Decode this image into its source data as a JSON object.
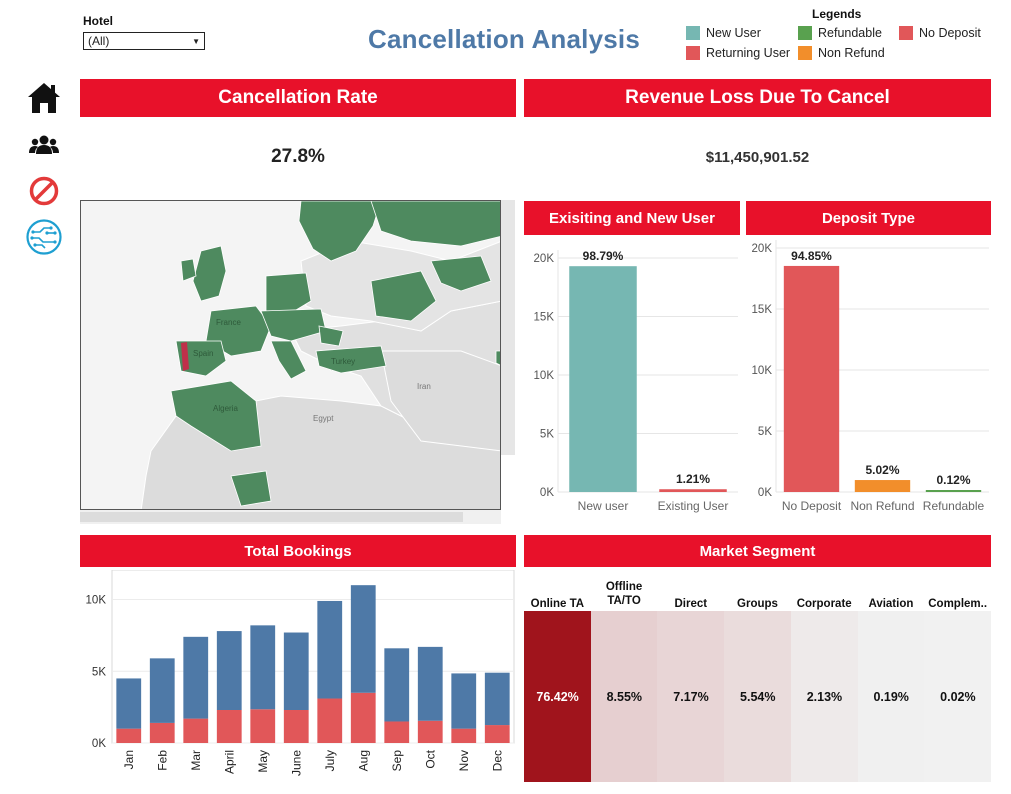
{
  "filter": {
    "label": "Hotel",
    "value": "(All)"
  },
  "title": "Cancellation Analysis",
  "legends": {
    "title": "Legends",
    "items": [
      {
        "label": "New User",
        "color": "#76b7b2"
      },
      {
        "label": "Returning User",
        "color": "#e15759"
      },
      {
        "label": "Refundable",
        "color": "#59a14f"
      },
      {
        "label": "Non Refund",
        "color": "#f28e2b"
      },
      {
        "label": "No Deposit",
        "color": "#e15759"
      }
    ]
  },
  "nav": [
    "home-icon",
    "users-icon",
    "no-entry-icon",
    "circuit-icon"
  ],
  "kpis": {
    "cancellation_rate": {
      "title": "Cancellation Rate",
      "value": "27.8%"
    },
    "revenue_loss": {
      "title": "Revenue Loss Due To Cancel",
      "value": "$11,450,901.52"
    }
  },
  "map": {
    "labels": [
      "Iran",
      "Egypt",
      "Algeria",
      "Turkey",
      "France",
      "Spain"
    ],
    "highlight_color": "#4e8a5f",
    "portugal_color": "#c0304a"
  },
  "charts": {
    "users": {
      "title": "Exisiting and New User",
      "chart_data": {
        "type": "bar",
        "categories": [
          "New user",
          "Existing User"
        ],
        "values": [
          19300,
          236
        ],
        "labels": [
          "98.79%",
          "1.21%"
        ],
        "colors": [
          "#76b7b2",
          "#e15759"
        ],
        "ylim": [
          0,
          20000
        ],
        "yticks": [
          0,
          5000,
          10000,
          15000,
          20000
        ],
        "ytick_labels": [
          "0K",
          "5K",
          "10K",
          "15K",
          "20K"
        ]
      }
    },
    "deposit": {
      "title": "Deposit Type",
      "chart_data": {
        "type": "bar",
        "categories": [
          "No Deposit",
          "Non Refund",
          "Refundable"
        ],
        "values": [
          18530,
          980,
          24
        ],
        "labels": [
          "94.85%",
          "5.02%",
          "0.12%"
        ],
        "colors": [
          "#e15759",
          "#f28e2b",
          "#59a14f"
        ],
        "ylim": [
          0,
          20000
        ],
        "yticks": [
          0,
          5000,
          10000,
          15000,
          20000
        ],
        "ytick_labels": [
          "0K",
          "5K",
          "10K",
          "15K",
          "20K"
        ]
      }
    },
    "bookings": {
      "title": "Total Bookings",
      "chart_data": {
        "type": "bar",
        "stacked": true,
        "categories": [
          "Jan",
          "Feb",
          "Mar",
          "April",
          "May",
          "June",
          "July",
          "Aug",
          "Sep",
          "Oct",
          "Nov",
          "Dec"
        ],
        "series": [
          {
            "values": [
              1000,
              1400,
              1700,
              2300,
              2350,
              2300,
              3100,
              3500,
              1500,
              1550,
              1000,
              1250
            ],
            "color": "#e15759"
          },
          {
            "values": [
              3500,
              4500,
              5700,
              5500,
              5850,
              5400,
              6800,
              7500,
              5100,
              5150,
              3850,
              3650
            ],
            "color": "#4e79a7"
          }
        ],
        "ylim": [
          0,
          11500
        ],
        "yticks": [
          0,
          5000,
          10000
        ],
        "ytick_labels": [
          "0K",
          "5K",
          "10K"
        ]
      }
    }
  },
  "market_segment": {
    "title": "Market Segment",
    "columns": [
      {
        "label": [
          "Online TA"
        ],
        "value": "76.42%",
        "bg": "#a0141c",
        "fg": "#ffffff"
      },
      {
        "label": [
          "Offline",
          "TA/TO"
        ],
        "value": "8.55%",
        "bg": "#e6cfd0",
        "fg": "#111111"
      },
      {
        "label": [
          "Direct"
        ],
        "value": "7.17%",
        "bg": "#e8d5d6",
        "fg": "#111111"
      },
      {
        "label": [
          "Groups"
        ],
        "value": "5.54%",
        "bg": "#eadcdc",
        "fg": "#111111"
      },
      {
        "label": [
          "Corporate"
        ],
        "value": "2.13%",
        "bg": "#eeeaea",
        "fg": "#111111"
      },
      {
        "label": [
          "Aviation"
        ],
        "value": "0.19%",
        "bg": "#f0f0f0",
        "fg": "#111111"
      },
      {
        "label": [
          "Complem.."
        ],
        "value": "0.02%",
        "bg": "#f1f1f1",
        "fg": "#111111"
      }
    ]
  }
}
